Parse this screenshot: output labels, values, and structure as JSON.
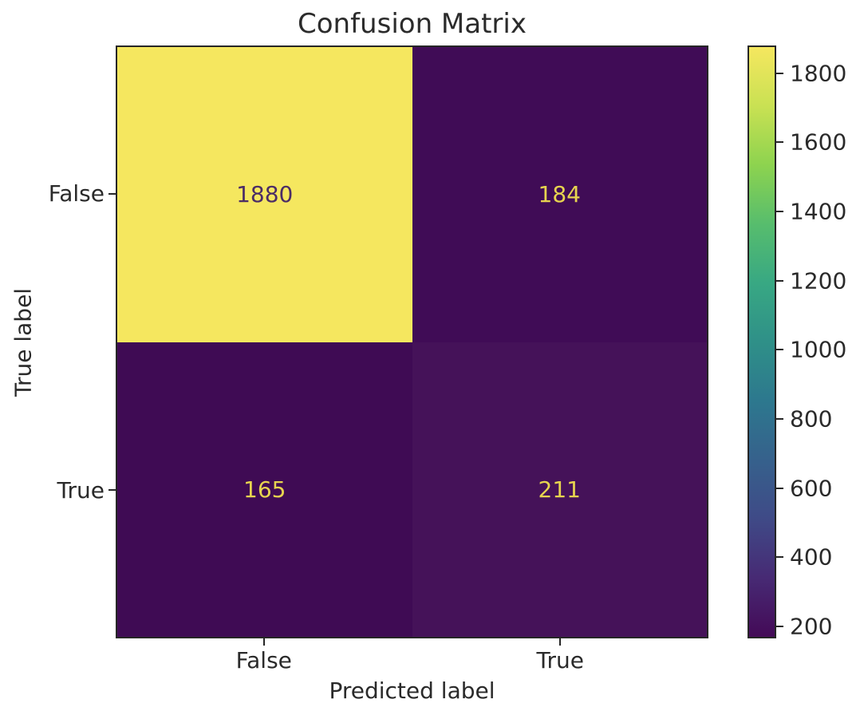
{
  "chart_data": {
    "type": "heatmap",
    "title": "Confusion Matrix",
    "xlabel": "Predicted label",
    "ylabel": "True label",
    "x_categories": [
      "False",
      "True"
    ],
    "y_categories": [
      "False",
      "True"
    ],
    "matrix": [
      [
        1880,
        184
      ],
      [
        165,
        211
      ]
    ],
    "vmin": 165,
    "vmax": 1880,
    "colormap": "viridis",
    "grid": false,
    "colorbar_position": "right",
    "colorbar_ticks": [
      200,
      400,
      600,
      800,
      1000,
      1200,
      1400,
      1600,
      1800
    ],
    "colormap_stops_bottom_to_top": [
      "#440a57",
      "#472a74",
      "#3f4a87",
      "#36618c",
      "#2d788e",
      "#2f9088",
      "#38a883",
      "#57bd6d",
      "#8dd34f",
      "#c9e153",
      "#f5e75f"
    ],
    "cells": [
      {
        "true_label": "False",
        "predicted_label": "False",
        "value": "1880",
        "bg": "#f5e75f",
        "fg": "#4b2c66"
      },
      {
        "true_label": "False",
        "predicted_label": "True",
        "value": "184",
        "bg": "#400c56",
        "fg": "#e7d44f"
      },
      {
        "true_label": "True",
        "predicted_label": "False",
        "value": "165",
        "bg": "#3f0b54",
        "fg": "#e7d44f"
      },
      {
        "true_label": "True",
        "predicted_label": "True",
        "value": "211",
        "bg": "#451259",
        "fg": "#e7d44f"
      }
    ]
  },
  "colors": {
    "background": "#ffffff",
    "spine": "#262626",
    "text": "#2a2a2a"
  }
}
